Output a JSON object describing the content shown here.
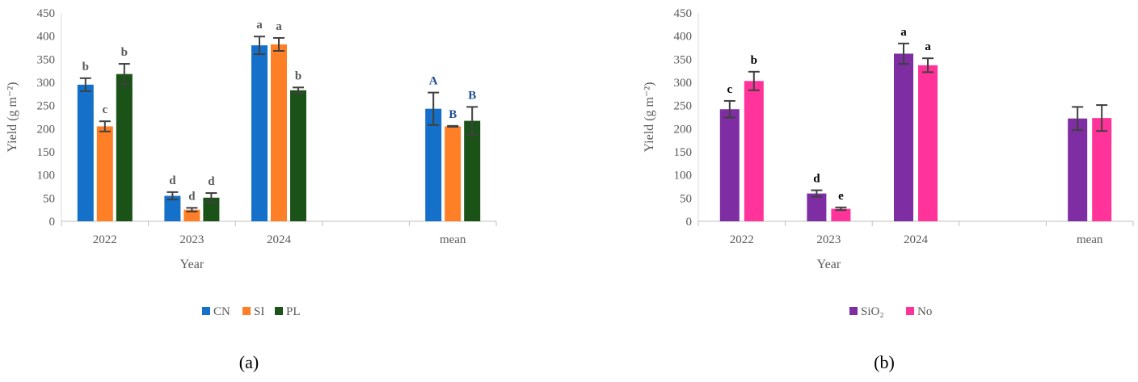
{
  "chart_data": [
    {
      "type": "bar",
      "panel_label": "(a)",
      "categories": [
        "2022",
        "2023",
        "2024",
        "",
        "mean"
      ],
      "xlabel": "Year",
      "ylabel": "Yield (g m⁻²)",
      "ylim": [
        0,
        450
      ],
      "yticks": [
        0,
        50,
        100,
        150,
        200,
        250,
        300,
        350,
        400,
        450
      ],
      "legend_position": "bottom",
      "series": [
        {
          "name": "CN",
          "color": "#1470C8",
          "values": [
            295,
            55,
            380,
            null,
            243
          ],
          "errors": [
            14,
            8,
            19,
            null,
            35
          ],
          "labels": [
            "b",
            "d",
            "a",
            "",
            "A"
          ]
        },
        {
          "name": "SI",
          "color": "#FF7F27",
          "values": [
            205,
            25,
            382,
            null,
            205
          ],
          "errors": [
            11,
            4,
            14,
            null,
            1
          ],
          "labels": [
            "c",
            "d",
            "a",
            "",
            "B"
          ]
        },
        {
          "name": "PL",
          "color": "#1A5218",
          "values": [
            318,
            51,
            283,
            null,
            217
          ],
          "errors": [
            22,
            10,
            6,
            null,
            30
          ],
          "labels": [
            "b",
            "d",
            "b",
            "",
            "B"
          ]
        }
      ],
      "label_colors": [
        "#595959",
        "#595959",
        "#595959",
        "",
        "#1F4E96"
      ]
    },
    {
      "type": "bar",
      "panel_label": "(b)",
      "categories": [
        "2022",
        "2023",
        "2024",
        "",
        "mean"
      ],
      "xlabel": "Year",
      "ylabel": "Yield (g m⁻²)",
      "ylim": [
        0,
        450
      ],
      "yticks": [
        0,
        50,
        100,
        150,
        200,
        250,
        300,
        350,
        400,
        450
      ],
      "legend_position": "bottom",
      "series": [
        {
          "name": "SiO₂",
          "color": "#7E2DA3",
          "values": [
            242,
            60,
            362,
            null,
            222
          ],
          "errors": [
            18,
            7,
            22,
            null,
            25
          ],
          "labels": [
            "c",
            "d",
            "a",
            "",
            ""
          ]
        },
        {
          "name": "No",
          "color": "#FF3399",
          "values": [
            303,
            27,
            337,
            null,
            223
          ],
          "errors": [
            20,
            3,
            15,
            null,
            28
          ],
          "labels": [
            "b",
            "e",
            "a",
            "",
            ""
          ]
        }
      ],
      "label_colors": [
        "#000000",
        "#000000",
        "#000000",
        "",
        "#000000"
      ]
    }
  ]
}
